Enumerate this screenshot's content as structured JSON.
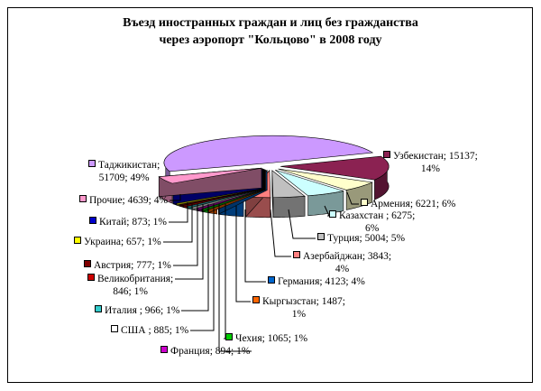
{
  "chart_data": {
    "type": "pie",
    "style": "3d-exploded",
    "title_line1": "Въезд иностранных граждан и лиц без гражданства",
    "title_line2": "через аэропорт \"Кольцово\" в 2008 году",
    "slices": [
      {
        "name": "Узбекистан",
        "value": 15137,
        "percent": "14%",
        "color": "#8b2252",
        "label1": "Узбекистан; 15137;",
        "label2": "14%"
      },
      {
        "name": "Армения",
        "value": 6221,
        "percent": "6%",
        "color": "#ffffcc",
        "label1": "Армения; 6221; 6%"
      },
      {
        "name": "Казахстан",
        "value": 6275,
        "percent": "6%",
        "color": "#ccffff",
        "label1": "Казахстан ; 6275;",
        "label2": "6%"
      },
      {
        "name": "Турция",
        "value": 5004,
        "percent": "5%",
        "color": "#c0c0c0",
        "label1": "Турция; 5004; 5%"
      },
      {
        "name": "Азербайджан",
        "value": 3843,
        "percent": "4%",
        "color": "#ff8080",
        "label1": "Азербайджан; 3843;",
        "label2": "4%"
      },
      {
        "name": "Германия",
        "value": 4123,
        "percent": "4%",
        "color": "#0066cc",
        "label1": "Германия; 4123; 4%"
      },
      {
        "name": "Кыргызстан",
        "value": 1487,
        "percent": "1%",
        "color": "#ff6600",
        "label1": "Кыргызстан; 1487;",
        "label2": "1%"
      },
      {
        "name": "Чехия",
        "value": 1065,
        "percent": "1%",
        "color": "#00cc00",
        "label1": "Чехия; 1065; 1%"
      },
      {
        "name": "Франция",
        "value": 894,
        "percent": "1%",
        "color": "#cc00cc",
        "label1": "Франция; 894; 1%"
      },
      {
        "name": "США",
        "value": 885,
        "percent": "1%",
        "color": "#ffffff",
        "label1": "США ; 885; 1%"
      },
      {
        "name": "Италия",
        "value": 966,
        "percent": "1%",
        "color": "#33cccc",
        "label1": "Италия ; 966; 1%"
      },
      {
        "name": "Великобритания",
        "value": 846,
        "percent": "1%",
        "color": "#cc0000",
        "label1": "Великобритания;",
        "label2": "846; 1%"
      },
      {
        "name": "Австрия",
        "value": 777,
        "percent": "1%",
        "color": "#800000",
        "label1": "Австрия; 777; 1%"
      },
      {
        "name": "Украина",
        "value": 657,
        "percent": "1%",
        "color": "#ffff00",
        "label1": "Украина; 657; 1%"
      },
      {
        "name": "Китай",
        "value": 873,
        "percent": "1%",
        "color": "#0000cc",
        "label1": "Китай; 873; 1%"
      },
      {
        "name": "Прочие",
        "value": 4639,
        "percent": "4%",
        "color": "#ff99cc",
        "label1": "Прочие; 4639; 4%"
      },
      {
        "name": "Таджикистан",
        "value": 51709,
        "percent": "49%",
        "color": "#cc99ff",
        "label1": "Таджикистан;",
        "label2": "51709; 49%"
      }
    ]
  }
}
